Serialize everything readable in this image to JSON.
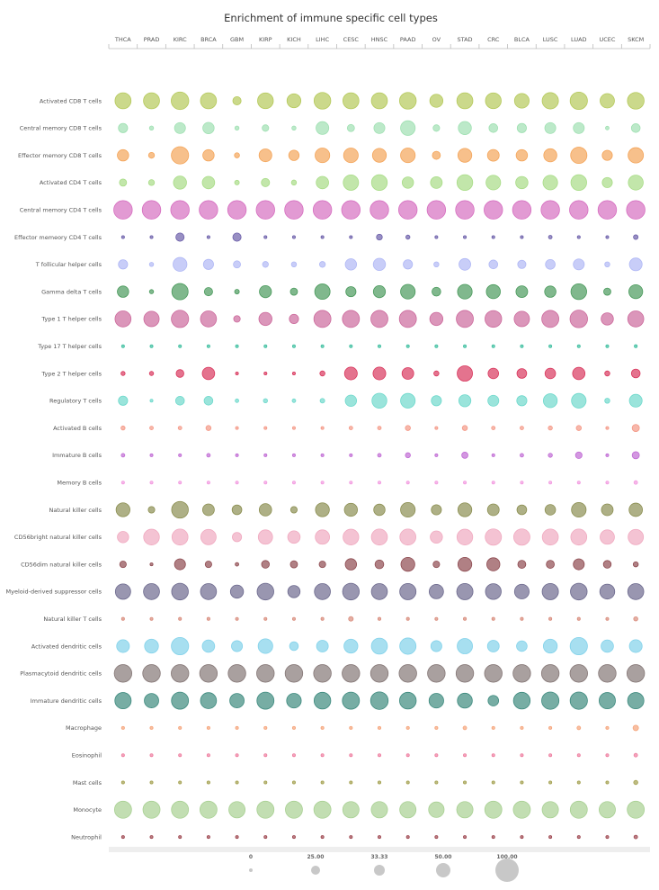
{
  "chart_data": {
    "type": "bubble-matrix",
    "title": "Enrichment of immune specific cell types",
    "columns": [
      "THCA",
      "PRAD",
      "KIRC",
      "BRCA",
      "GBM",
      "KIRP",
      "KICH",
      "LIHC",
      "CESC",
      "HNSC",
      "PAAD",
      "OV",
      "STAD",
      "CRC",
      "BLCA",
      "LUSC",
      "LUAD",
      "UCEC",
      "SKCM"
    ],
    "rows": [
      {
        "name": "Activated CD8 T cells",
        "color": "#b5c95a",
        "values": [
          60,
          60,
          72,
          60,
          16,
          58,
          45,
          65,
          60,
          60,
          65,
          40,
          60,
          58,
          50,
          62,
          70,
          48,
          65
        ]
      },
      {
        "name": "Central memory CD8 T cells",
        "color": "#9fe0b2",
        "values": [
          20,
          4,
          28,
          30,
          4,
          10,
          4,
          38,
          12,
          28,
          50,
          10,
          40,
          18,
          20,
          28,
          28,
          3,
          18
        ]
      },
      {
        "name": "Effector memory CD8 T cells",
        "color": "#f4a55a",
        "values": [
          30,
          8,
          70,
          30,
          6,
          38,
          25,
          50,
          50,
          45,
          50,
          15,
          45,
          32,
          30,
          40,
          62,
          24,
          55
        ]
      },
      {
        "name": "Activated CD4 T cells",
        "color": "#a8dc86",
        "values": [
          12,
          8,
          40,
          36,
          5,
          16,
          6,
          36,
          55,
          58,
          30,
          32,
          58,
          50,
          35,
          50,
          58,
          24,
          52
        ]
      },
      {
        "name": "Central memory CD4 T cells",
        "color": "#d66fc0",
        "values": [
          80,
          80,
          80,
          80,
          80,
          80,
          80,
          80,
          80,
          80,
          80,
          80,
          80,
          80,
          80,
          80,
          80,
          80,
          80
        ]
      },
      {
        "name": "Effector memeory CD4 T cells",
        "color": "#6c5faa",
        "values": [
          2,
          2,
          16,
          2,
          16,
          2,
          2,
          2,
          2,
          8,
          4,
          1,
          2,
          2,
          2,
          3,
          2,
          1,
          5
        ]
      },
      {
        "name": "T follicular helper cells",
        "color": "#b0b8f5",
        "values": [
          20,
          4,
          45,
          24,
          12,
          8,
          6,
          8,
          30,
          35,
          20,
          6,
          32,
          18,
          16,
          22,
          28,
          6,
          38
        ]
      },
      {
        "name": "Gamma delta T cells",
        "color": "#4a9a5c",
        "values": [
          30,
          4,
          62,
          16,
          5,
          34,
          12,
          55,
          24,
          34,
          50,
          18,
          50,
          46,
          32,
          30,
          58,
          12,
          45
        ]
      },
      {
        "name": "Type 1 T helper cells",
        "color": "#cc6a9c",
        "values": [
          60,
          55,
          70,
          60,
          10,
          40,
          20,
          68,
          68,
          68,
          68,
          40,
          68,
          65,
          55,
          68,
          72,
          35,
          60
        ]
      },
      {
        "name": "Type 17 T helper cells",
        "color": "#3fbfa0",
        "values": [
          1,
          1,
          1,
          1,
          1,
          1,
          1,
          1,
          1,
          1,
          1,
          1,
          1,
          1,
          1,
          1,
          1,
          1,
          2
        ]
      },
      {
        "name": "Type 2 T helper cells",
        "color": "#d9385e",
        "values": [
          4,
          4,
          14,
          36,
          1,
          2,
          2,
          6,
          38,
          38,
          32,
          6,
          55,
          26,
          22,
          26,
          36,
          6,
          18
        ]
      },
      {
        "name": "Regulatory T cells",
        "color": "#6fd9cc",
        "values": [
          20,
          1,
          18,
          18,
          3,
          4,
          3,
          5,
          30,
          52,
          50,
          24,
          34,
          28,
          24,
          45,
          50,
          6,
          38
        ]
      },
      {
        "name": "Activated B cells",
        "color": "#f49886",
        "values": [
          4,
          3,
          3,
          6,
          1,
          1,
          1,
          2,
          3,
          3,
          6,
          1,
          6,
          3,
          3,
          4,
          6,
          2,
          12
        ]
      },
      {
        "name": "Immature B cells",
        "color": "#c06bd4",
        "values": [
          3,
          1,
          2,
          3,
          1,
          1,
          1,
          2,
          2,
          3,
          6,
          1,
          9,
          2,
          3,
          4,
          10,
          1,
          12
        ]
      },
      {
        "name": "Memory B cells",
        "color": "#f29ae0",
        "values": [
          1,
          1,
          1,
          1,
          1,
          1,
          1,
          1,
          1,
          1,
          1,
          1,
          1,
          1,
          1,
          1,
          1,
          1,
          3
        ]
      },
      {
        "name": "Natural killer cells",
        "color": "#8c8f52",
        "values": [
          45,
          10,
          65,
          32,
          22,
          36,
          10,
          45,
          40,
          30,
          50,
          24,
          45,
          32,
          22,
          26,
          50,
          32,
          42
        ]
      },
      {
        "name": "CD56bright natural killer cells",
        "color": "#f0aac0",
        "values": [
          30,
          58,
          60,
          55,
          20,
          48,
          36,
          48,
          58,
          60,
          60,
          35,
          58,
          62,
          62,
          60,
          60,
          48,
          55
        ]
      },
      {
        "name": "CD56dim natural killer cells",
        "color": "#8e4a50",
        "values": [
          10,
          2,
          28,
          10,
          3,
          14,
          12,
          10,
          30,
          18,
          45,
          10,
          45,
          40,
          15,
          15,
          28,
          14,
          6
        ]
      },
      {
        "name": "Myeloid-derived suppressor cells",
        "color": "#6d6a8e",
        "values": [
          55,
          60,
          65,
          60,
          40,
          65,
          35,
          60,
          65,
          60,
          62,
          48,
          62,
          58,
          50,
          62,
          65,
          52,
          60
        ]
      },
      {
        "name": "Natural killer T cells",
        "color": "#d88c7c",
        "values": [
          2,
          1,
          2,
          2,
          1,
          1,
          1,
          2,
          5,
          2,
          2,
          1,
          2,
          2,
          2,
          2,
          2,
          1,
          4
        ]
      },
      {
        "name": "Activated dendritic cells",
        "color": "#82d2ea",
        "values": [
          38,
          45,
          70,
          36,
          28,
          50,
          18,
          32,
          45,
          60,
          62,
          28,
          55,
          32,
          26,
          45,
          70,
          36,
          38
        ]
      },
      {
        "name": "Plasmacytoid dendritic cells",
        "color": "#857776",
        "values": [
          72,
          72,
          72,
          72,
          72,
          72,
          72,
          72,
          72,
          72,
          72,
          72,
          72,
          72,
          72,
          72,
          72,
          72,
          72
        ]
      },
      {
        "name": "Immature dendritic cells",
        "color": "#3d8a7e",
        "values": [
          62,
          48,
          68,
          60,
          48,
          68,
          50,
          65,
          68,
          72,
          65,
          50,
          52,
          26,
          65,
          70,
          70,
          62,
          62
        ]
      },
      {
        "name": "Macrophage",
        "color": "#f5a47a",
        "values": [
          2,
          2,
          2,
          2,
          1,
          2,
          2,
          2,
          2,
          2,
          2,
          2,
          3,
          2,
          2,
          2,
          3,
          2,
          7
        ]
      },
      {
        "name": "Eosinophil",
        "color": "#ee7ea0",
        "values": [
          1,
          1,
          1,
          1,
          1,
          1,
          1,
          1,
          1,
          1,
          1,
          1,
          1,
          1,
          1,
          1,
          1,
          1,
          3
        ]
      },
      {
        "name": "Mast cells",
        "color": "#a3a04e",
        "values": [
          2,
          1,
          1,
          2,
          1,
          1,
          1,
          1,
          1,
          2,
          1,
          1,
          2,
          1,
          2,
          1,
          1,
          1,
          4
        ]
      },
      {
        "name": "Monocyte",
        "color": "#a8d092",
        "values": [
          68,
          68,
          68,
          68,
          62,
          68,
          68,
          68,
          62,
          62,
          62,
          56,
          62,
          68,
          68,
          62,
          68,
          62,
          68
        ]
      },
      {
        "name": "Neutrophil",
        "color": "#9e4750",
        "values": [
          1,
          1,
          1,
          1,
          1,
          1,
          1,
          1,
          1,
          1,
          1,
          1,
          1,
          1,
          1,
          1,
          1,
          1,
          3
        ]
      }
    ],
    "legend": {
      "labels": [
        "0",
        "25.00",
        "33.33",
        "50.00",
        "100.00"
      ],
      "values": [
        0,
        25,
        33.33,
        50,
        100
      ],
      "color": "#c8c8c8"
    },
    "size_scale_max": 100
  }
}
